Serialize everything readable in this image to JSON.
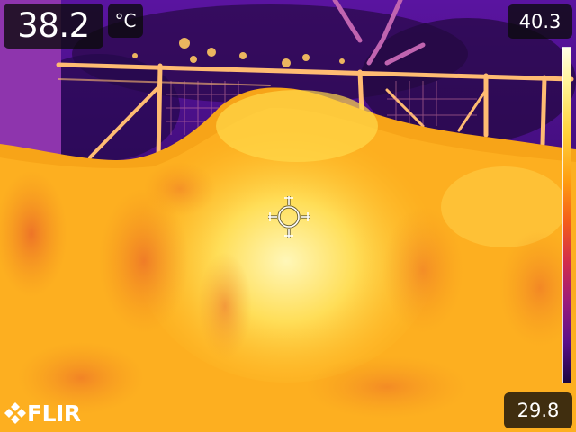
{
  "measurement": {
    "spot_value": "38.2",
    "unit": "°C"
  },
  "scale": {
    "max": "40.3",
    "min": "29.8"
  },
  "brand": {
    "logo_text": "FLIR"
  },
  "palette": {
    "name": "iron",
    "hot": "#fff8c8",
    "warm": "#ffb020",
    "mid": "#e8482c",
    "cool": "#7a1a8a",
    "cold": "#1e0850"
  }
}
